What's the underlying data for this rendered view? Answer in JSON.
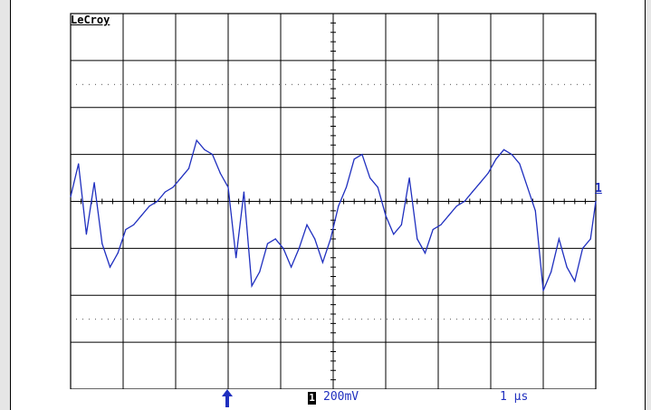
{
  "brand": "LeCroy",
  "channel_marker": "1",
  "status": {
    "channel_badge": "1",
    "volts_per_div": "200mV",
    "time_per_div": "1 µs"
  },
  "colors": {
    "trace": "#1f2fbf",
    "grid": "#000000",
    "background": "#ffffff"
  },
  "chart_data": {
    "type": "line",
    "title": "",
    "xlabel": "",
    "ylabel": "",
    "x_unit": "µs",
    "y_unit": "V",
    "xlim": [
      0,
      10
    ],
    "ylim": [
      -0.8,
      0.8
    ],
    "grid": true,
    "series": [
      {
        "name": "",
        "x": [
          0,
          0.15,
          0.3,
          0.45,
          0.6,
          0.75,
          0.9,
          1.05,
          1.2,
          1.35,
          1.5,
          1.65,
          1.8,
          1.95,
          2.1,
          2.25,
          2.4,
          2.55,
          2.7,
          2.85,
          3.0,
          3.15,
          3.3,
          3.45,
          3.6,
          3.75,
          3.9,
          4.05,
          4.2,
          4.35,
          4.5,
          4.65,
          4.8,
          4.95,
          5.1,
          5.25,
          5.4,
          5.55,
          5.7,
          5.85,
          6.0,
          6.15,
          6.3,
          6.45,
          6.6,
          6.75,
          6.9,
          7.05,
          7.2,
          7.35,
          7.5,
          7.65,
          7.8,
          7.95,
          8.1,
          8.25,
          8.4,
          8.55,
          8.7,
          8.85,
          9.0,
          9.15,
          9.3,
          9.45,
          9.6,
          9.75,
          9.9,
          10.0
        ],
        "y": [
          0.02,
          0.16,
          -0.14,
          0.08,
          -0.18,
          -0.28,
          -0.22,
          -0.12,
          -0.1,
          -0.06,
          -0.02,
          0.0,
          0.04,
          0.06,
          0.1,
          0.14,
          0.26,
          0.22,
          0.2,
          0.12,
          0.06,
          -0.24,
          0.04,
          -0.36,
          -0.3,
          -0.18,
          -0.16,
          -0.2,
          -0.28,
          -0.2,
          -0.1,
          -0.16,
          -0.26,
          -0.16,
          -0.02,
          0.06,
          0.18,
          0.2,
          0.1,
          0.06,
          -0.06,
          -0.14,
          -0.1,
          0.1,
          -0.16,
          -0.22,
          -0.12,
          -0.1,
          -0.06,
          -0.02,
          0.0,
          0.04,
          0.08,
          0.12,
          0.18,
          0.22,
          0.2,
          0.16,
          0.06,
          -0.04,
          -0.38,
          -0.3,
          -0.16,
          -0.28,
          -0.34,
          -0.2,
          -0.16,
          0.0
        ]
      }
    ]
  }
}
